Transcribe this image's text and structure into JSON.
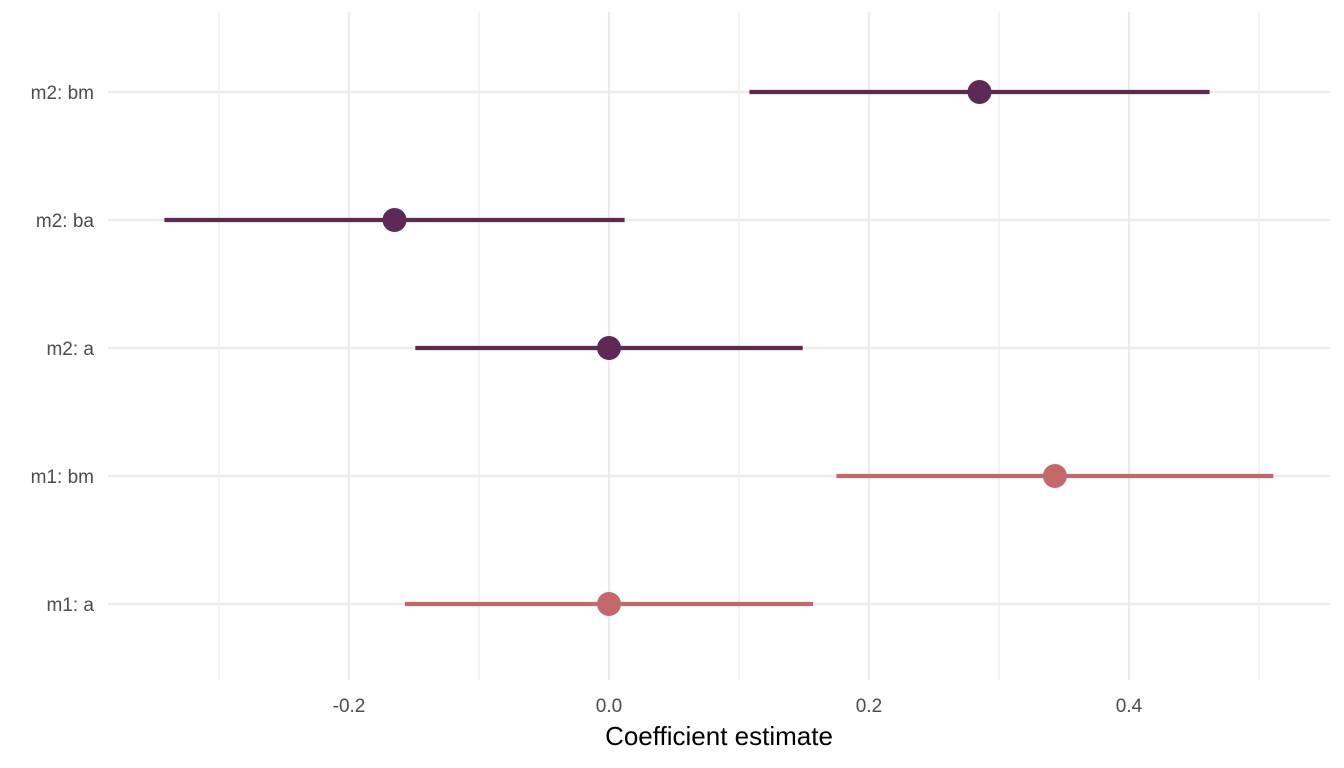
{
  "chart_data": {
    "type": "scatter",
    "subtype": "coefficient-plot",
    "xlabel": "Coefficient estimate",
    "ylabel": "",
    "xlim": [
      -0.3845,
      0.5535
    ],
    "x_ticks": [
      -0.2,
      0.0,
      0.2,
      0.4
    ],
    "x_tick_labels": [
      "-0.2",
      "0.0",
      "0.2",
      "0.4"
    ],
    "x_minor_ticks": [
      -0.3,
      -0.1,
      0.1,
      0.3,
      0.5
    ],
    "categories": [
      "m2: bm",
      "m2: ba",
      "m2: a",
      "m1: bm",
      "m1: a"
    ],
    "grid": true,
    "legend": "none",
    "series": [
      {
        "color": "#5c2a54",
        "points": [
          {
            "label": "m2: bm",
            "estimate": 0.285,
            "low": 0.108,
            "high": 0.462
          },
          {
            "label": "m2: ba",
            "estimate": -0.165,
            "low": -0.342,
            "high": 0.012
          },
          {
            "label": "m2: a",
            "estimate": 0.0,
            "low": -0.149,
            "high": 0.149
          }
        ]
      },
      {
        "color": "#c4696a",
        "points": [
          {
            "label": "m1: bm",
            "estimate": 0.343,
            "low": 0.175,
            "high": 0.511
          },
          {
            "label": "m1: a",
            "estimate": 0.0,
            "low": -0.157,
            "high": 0.157
          }
        ]
      }
    ]
  }
}
